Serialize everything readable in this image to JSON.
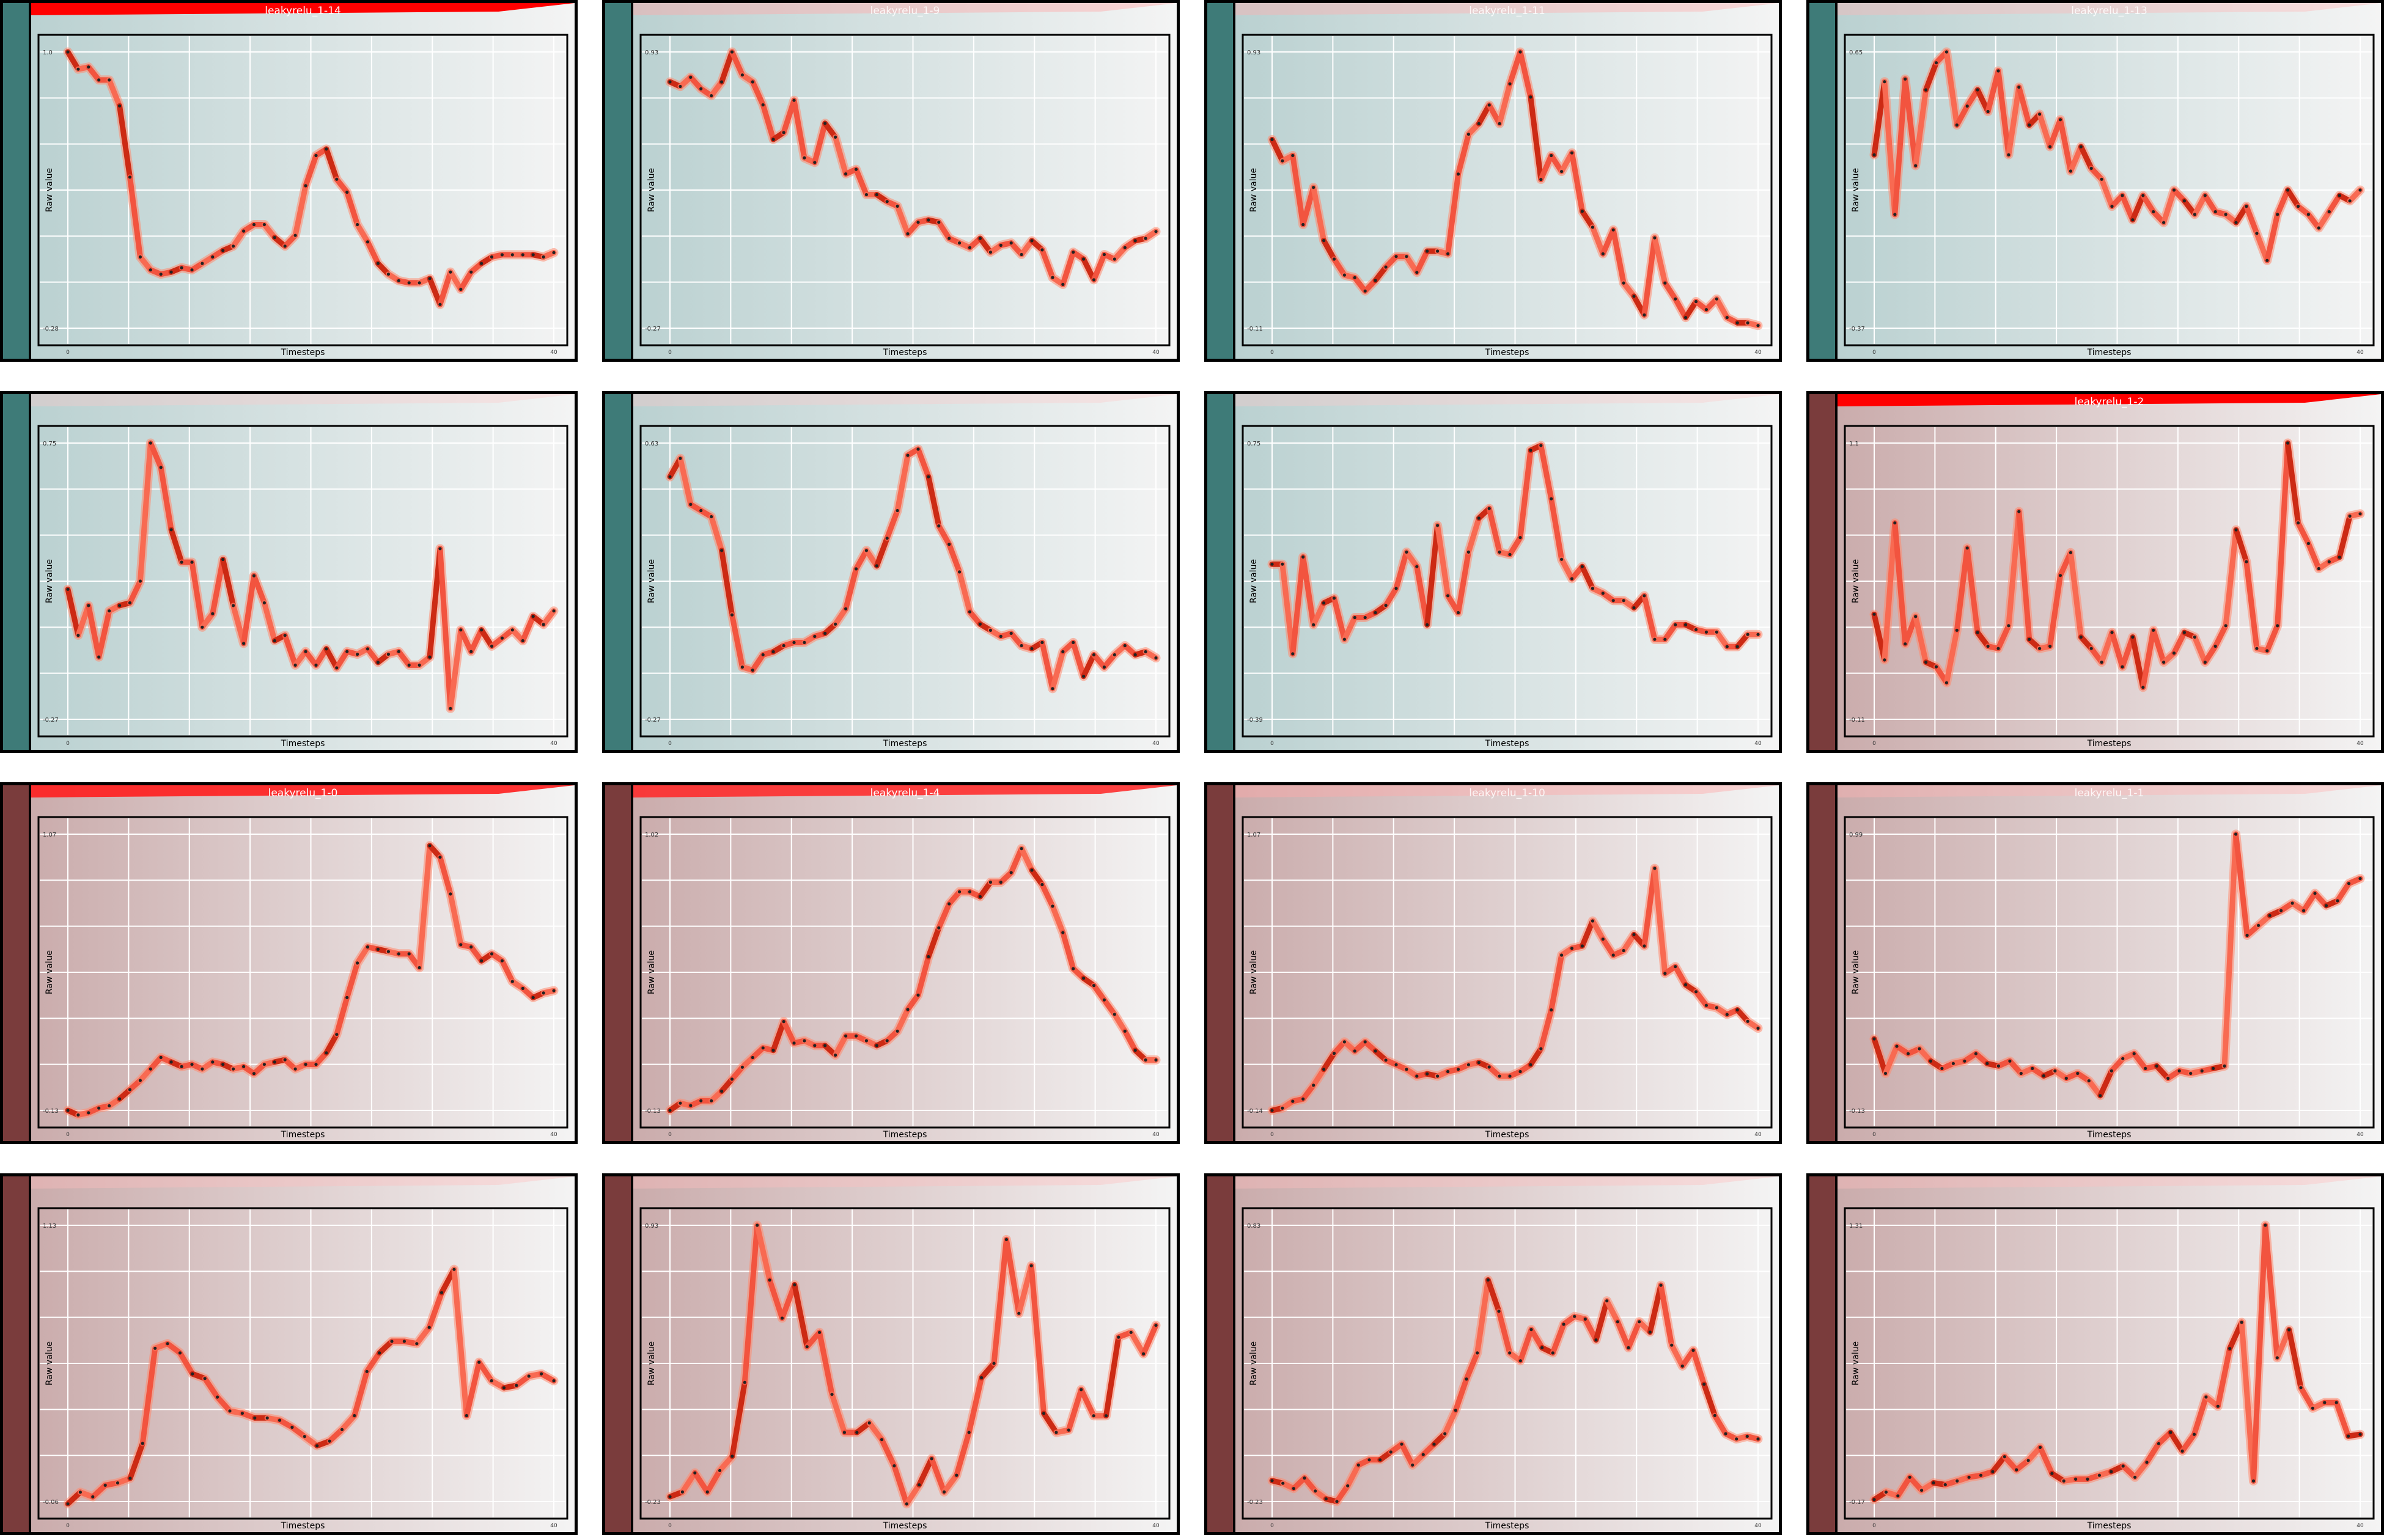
{
  "common": {
    "xlabel": "Timesteps",
    "ylabel": "Raw value",
    "x_tick_first": "0",
    "x_tick_last": "40"
  },
  "colors": {
    "teal_bg": "#3e7b78",
    "maroon_bg": "#7a3c3c",
    "line": "#f2543f",
    "line_dark": "#cc2a14",
    "title_red": "#ff0000"
  },
  "charts": [
    {
      "title": "leakyrelu_1-14",
      "title_strength": 1.0,
      "theme": "teal",
      "ylim": [
        -0.28,
        1.0
      ],
      "y_tick_top": "1.0",
      "y_tick_bottom": "-0.28",
      "values": [
        1.0,
        0.92,
        0.93,
        0.87,
        0.87,
        0.75,
        0.42,
        0.05,
        -0.01,
        -0.03,
        -0.02,
        0.0,
        -0.01,
        0.02,
        0.05,
        0.08,
        0.1,
        0.17,
        0.2,
        0.2,
        0.14,
        0.1,
        0.15,
        0.38,
        0.52,
        0.55,
        0.41,
        0.35,
        0.2,
        0.12,
        0.02,
        -0.03,
        -0.06,
        -0.07,
        -0.07,
        -0.05,
        -0.17,
        -0.02,
        -0.1,
        -0.02,
        0.02,
        0.05,
        0.06,
        0.06,
        0.06,
        0.06,
        0.05,
        0.07
      ]
    },
    {
      "title": "leakyrelu_1-9",
      "title_strength": 0.15,
      "theme": "teal",
      "ylim": [
        -0.27,
        0.93
      ],
      "y_tick_top": "0.93",
      "y_tick_bottom": "-0.27",
      "values": [
        0.8,
        0.78,
        0.82,
        0.77,
        0.74,
        0.8,
        0.93,
        0.83,
        0.8,
        0.7,
        0.55,
        0.58,
        0.72,
        0.47,
        0.45,
        0.62,
        0.56,
        0.4,
        0.42,
        0.31,
        0.31,
        0.28,
        0.26,
        0.14,
        0.19,
        0.2,
        0.19,
        0.12,
        0.1,
        0.08,
        0.12,
        0.06,
        0.09,
        0.1,
        0.05,
        0.11,
        0.07,
        -0.05,
        -0.08,
        0.06,
        0.03,
        -0.06,
        0.05,
        0.03,
        0.08,
        0.11,
        0.12,
        0.15
      ]
    },
    {
      "title": "leakyrelu_1-11",
      "title_strength": 0.12,
      "theme": "teal",
      "ylim": [
        -0.11,
        0.93
      ],
      "y_tick_top": "0.93",
      "y_tick_bottom": "-0.11",
      "values": [
        0.6,
        0.52,
        0.54,
        0.28,
        0.42,
        0.22,
        0.15,
        0.09,
        0.08,
        0.03,
        0.07,
        0.12,
        0.16,
        0.16,
        0.1,
        0.18,
        0.18,
        0.17,
        0.47,
        0.62,
        0.66,
        0.73,
        0.66,
        0.81,
        0.93,
        0.76,
        0.45,
        0.54,
        0.48,
        0.55,
        0.33,
        0.27,
        0.17,
        0.26,
        0.06,
        0.01,
        -0.06,
        0.23,
        0.06,
        0.0,
        -0.07,
        -0.01,
        -0.04,
        0.0,
        -0.07,
        -0.09,
        -0.09,
        -0.1
      ]
    },
    {
      "title": "leakyrelu_1-13",
      "title_strength": 0.08,
      "theme": "teal",
      "ylim": [
        -0.37,
        0.65
      ],
      "y_tick_top": "0.65",
      "y_tick_bottom": "-0.37",
      "values": [
        0.27,
        0.54,
        0.05,
        0.55,
        0.23,
        0.51,
        0.61,
        0.65,
        0.38,
        0.45,
        0.51,
        0.43,
        0.58,
        0.27,
        0.52,
        0.38,
        0.42,
        0.3,
        0.4,
        0.21,
        0.3,
        0.22,
        0.18,
        0.08,
        0.12,
        0.03,
        0.12,
        0.06,
        0.02,
        0.14,
        0.1,
        0.05,
        0.12,
        0.06,
        0.05,
        0.02,
        0.08,
        -0.02,
        -0.12,
        0.05,
        0.14,
        0.08,
        0.05,
        0.0,
        0.06,
        0.12,
        0.1,
        0.14
      ]
    },
    {
      "title": "",
      "title_strength": 0.0,
      "theme": "teal",
      "ylim": [
        -0.27,
        0.75
      ],
      "y_tick_top": "0.75",
      "y_tick_bottom": "-0.27",
      "values": [
        0.21,
        0.04,
        0.15,
        -0.04,
        0.13,
        0.15,
        0.16,
        0.24,
        0.75,
        0.66,
        0.43,
        0.31,
        0.31,
        0.07,
        0.12,
        0.32,
        0.15,
        0.01,
        0.26,
        0.16,
        0.02,
        0.04,
        -0.07,
        -0.02,
        -0.07,
        -0.01,
        -0.08,
        -0.02,
        -0.03,
        -0.01,
        -0.06,
        -0.03,
        -0.02,
        -0.07,
        -0.07,
        -0.04,
        0.36,
        -0.23,
        0.06,
        -0.02,
        0.06,
        0.0,
        0.03,
        0.06,
        0.02,
        0.11,
        0.08,
        0.13
      ]
    },
    {
      "title": "",
      "title_strength": 0.0,
      "theme": "teal",
      "ylim": [
        -0.27,
        0.63
      ],
      "y_tick_top": "0.63",
      "y_tick_bottom": "-0.27",
      "values": [
        0.52,
        0.58,
        0.43,
        0.41,
        0.39,
        0.28,
        0.07,
        -0.1,
        -0.11,
        -0.06,
        -0.05,
        -0.03,
        -0.02,
        -0.02,
        0.0,
        0.01,
        0.04,
        0.09,
        0.22,
        0.28,
        0.23,
        0.32,
        0.41,
        0.59,
        0.61,
        0.52,
        0.36,
        0.3,
        0.21,
        0.08,
        0.04,
        0.02,
        0.0,
        0.01,
        -0.03,
        -0.04,
        -0.02,
        -0.17,
        -0.05,
        -0.02,
        -0.13,
        -0.06,
        -0.1,
        -0.06,
        -0.03,
        -0.06,
        -0.05,
        -0.07
      ]
    },
    {
      "title": "",
      "title_strength": 0.0,
      "theme": "teal",
      "ylim": [
        -0.39,
        0.75
      ],
      "y_tick_top": "0.75",
      "y_tick_bottom": "-0.39",
      "values": [
        0.25,
        0.25,
        -0.12,
        0.28,
        0.0,
        0.09,
        0.11,
        -0.06,
        0.03,
        0.03,
        0.05,
        0.08,
        0.15,
        0.3,
        0.24,
        0.0,
        0.41,
        0.12,
        0.05,
        0.3,
        0.44,
        0.48,
        0.3,
        0.29,
        0.36,
        0.72,
        0.74,
        0.52,
        0.27,
        0.19,
        0.24,
        0.15,
        0.13,
        0.1,
        0.1,
        0.07,
        0.12,
        -0.06,
        -0.06,
        0.0,
        0.0,
        -0.02,
        -0.03,
        -0.03,
        -0.09,
        -0.09,
        -0.04,
        -0.04
      ]
    },
    {
      "title": "leakyrelu_1-2",
      "title_strength": 1.0,
      "theme": "maroon",
      "ylim": [
        -0.11,
        1.1
      ],
      "y_tick_top": "1.1",
      "y_tick_bottom": "-0.11",
      "values": [
        0.35,
        0.15,
        0.75,
        0.22,
        0.34,
        0.14,
        0.12,
        0.05,
        0.28,
        0.64,
        0.27,
        0.21,
        0.2,
        0.3,
        0.8,
        0.24,
        0.2,
        0.21,
        0.52,
        0.62,
        0.25,
        0.2,
        0.14,
        0.27,
        0.12,
        0.25,
        0.03,
        0.28,
        0.14,
        0.18,
        0.27,
        0.25,
        0.14,
        0.21,
        0.3,
        0.72,
        0.58,
        0.2,
        0.19,
        0.3,
        1.1,
        0.75,
        0.66,
        0.55,
        0.58,
        0.6,
        0.78,
        0.79
      ]
    },
    {
      "title": "leakyrelu_1-0",
      "title_strength": 0.85,
      "theme": "maroon",
      "ylim": [
        -0.13,
        1.07
      ],
      "y_tick_top": "1.07",
      "y_tick_bottom": "-0.13",
      "values": [
        -0.13,
        -0.15,
        -0.14,
        -0.12,
        -0.11,
        -0.08,
        -0.04,
        0.0,
        0.05,
        0.1,
        0.08,
        0.06,
        0.07,
        0.05,
        0.08,
        0.07,
        0.05,
        0.06,
        0.03,
        0.07,
        0.08,
        0.09,
        0.05,
        0.07,
        0.07,
        0.12,
        0.2,
        0.36,
        0.51,
        0.58,
        0.57,
        0.56,
        0.55,
        0.55,
        0.49,
        1.02,
        0.97,
        0.81,
        0.59,
        0.58,
        0.52,
        0.55,
        0.52,
        0.43,
        0.4,
        0.36,
        0.38,
        0.39
      ]
    },
    {
      "title": "leakyrelu_1-4",
      "title_strength": 0.8,
      "theme": "maroon",
      "ylim": [
        -0.13,
        1.02
      ],
      "y_tick_top": "1.02",
      "y_tick_bottom": "-0.13",
      "values": [
        -0.13,
        -0.1,
        -0.11,
        -0.09,
        -0.09,
        -0.05,
        0.0,
        0.05,
        0.09,
        0.13,
        0.12,
        0.24,
        0.15,
        0.16,
        0.14,
        0.14,
        0.1,
        0.18,
        0.18,
        0.16,
        0.14,
        0.16,
        0.2,
        0.29,
        0.35,
        0.51,
        0.63,
        0.73,
        0.78,
        0.78,
        0.76,
        0.82,
        0.82,
        0.86,
        0.96,
        0.87,
        0.81,
        0.72,
        0.61,
        0.46,
        0.42,
        0.39,
        0.33,
        0.27,
        0.2,
        0.12,
        0.08,
        0.08
      ]
    },
    {
      "title": "leakyrelu_1-10",
      "title_strength": 0.15,
      "theme": "maroon",
      "ylim": [
        -0.14,
        1.07
      ],
      "y_tick_top": "1.07",
      "y_tick_bottom": "-0.14",
      "values": [
        -0.14,
        -0.13,
        -0.1,
        -0.09,
        -0.03,
        0.04,
        0.11,
        0.16,
        0.12,
        0.16,
        0.12,
        0.08,
        0.06,
        0.04,
        0.01,
        0.02,
        0.01,
        0.03,
        0.04,
        0.06,
        0.07,
        0.05,
        0.01,
        0.01,
        0.03,
        0.06,
        0.13,
        0.3,
        0.54,
        0.57,
        0.58,
        0.69,
        0.61,
        0.54,
        0.56,
        0.63,
        0.58,
        0.92,
        0.46,
        0.49,
        0.41,
        0.38,
        0.32,
        0.31,
        0.28,
        0.3,
        0.25,
        0.22
      ]
    },
    {
      "title": "leakyrelu_1-1",
      "title_strength": 0.1,
      "theme": "maroon",
      "ylim": [
        -0.13,
        0.99
      ],
      "y_tick_top": "0.99",
      "y_tick_bottom": "-0.13",
      "values": [
        0.16,
        0.02,
        0.13,
        0.1,
        0.12,
        0.07,
        0.04,
        0.06,
        0.07,
        0.1,
        0.06,
        0.05,
        0.07,
        0.02,
        0.04,
        0.01,
        0.03,
        0.0,
        0.02,
        -0.01,
        -0.07,
        0.03,
        0.08,
        0.1,
        0.04,
        0.05,
        0.0,
        0.03,
        0.02,
        0.03,
        0.04,
        0.05,
        0.99,
        0.58,
        0.62,
        0.66,
        0.68,
        0.71,
        0.68,
        0.75,
        0.7,
        0.72,
        0.79,
        0.81
      ]
    },
    {
      "title": "",
      "title_strength": 0.05,
      "theme": "maroon",
      "ylim": [
        -0.06,
        1.13
      ],
      "y_tick_top": "1.13",
      "y_tick_bottom": "-0.06",
      "values": [
        -0.07,
        -0.02,
        -0.04,
        0.01,
        0.02,
        0.04,
        0.19,
        0.6,
        0.62,
        0.58,
        0.49,
        0.47,
        0.39,
        0.33,
        0.32,
        0.3,
        0.3,
        0.29,
        0.26,
        0.22,
        0.18,
        0.2,
        0.25,
        0.31,
        0.5,
        0.58,
        0.63,
        0.63,
        0.62,
        0.69,
        0.84,
        0.94,
        0.31,
        0.54,
        0.46,
        0.43,
        0.44,
        0.48,
        0.49,
        0.46
      ]
    },
    {
      "title": "",
      "title_strength": 0.05,
      "theme": "maroon",
      "ylim": [
        -0.23,
        0.93
      ],
      "y_tick_top": "0.93",
      "y_tick_bottom": "-0.23",
      "values": [
        -0.21,
        -0.19,
        -0.11,
        -0.19,
        -0.1,
        -0.04,
        0.27,
        0.93,
        0.7,
        0.54,
        0.68,
        0.42,
        0.48,
        0.22,
        0.06,
        0.06,
        0.1,
        0.03,
        -0.08,
        -0.24,
        -0.16,
        -0.05,
        -0.19,
        -0.12,
        0.06,
        0.29,
        0.35,
        0.87,
        0.56,
        0.76,
        0.14,
        0.06,
        0.07,
        0.24,
        0.13,
        0.13,
        0.46,
        0.48,
        0.39,
        0.51
      ]
    },
    {
      "title": "",
      "title_strength": 0.05,
      "theme": "maroon",
      "ylim": [
        -0.23,
        0.83
      ],
      "y_tick_top": "0.83",
      "y_tick_bottom": "-0.23",
      "values": [
        -0.15,
        -0.16,
        -0.18,
        -0.14,
        -0.19,
        -0.22,
        -0.23,
        -0.17,
        -0.09,
        -0.07,
        -0.07,
        -0.04,
        -0.01,
        -0.09,
        -0.05,
        -0.01,
        0.03,
        0.12,
        0.24,
        0.34,
        0.62,
        0.5,
        0.34,
        0.31,
        0.43,
        0.36,
        0.34,
        0.45,
        0.48,
        0.47,
        0.39,
        0.54,
        0.46,
        0.36,
        0.46,
        0.42,
        0.6,
        0.37,
        0.29,
        0.35,
        0.22,
        0.1,
        0.03,
        0.01,
        0.02,
        0.01
      ]
    },
    {
      "title": "",
      "title_strength": 0.05,
      "theme": "maroon",
      "ylim": [
        -0.17,
        1.31
      ],
      "y_tick_top": "1.31",
      "y_tick_bottom": "-0.17",
      "values": [
        -0.16,
        -0.12,
        -0.14,
        -0.04,
        -0.11,
        -0.07,
        -0.08,
        -0.06,
        -0.04,
        -0.03,
        -0.01,
        0.07,
        0.0,
        0.05,
        0.12,
        -0.02,
        -0.06,
        -0.05,
        -0.05,
        -0.03,
        -0.01,
        0.02,
        -0.04,
        0.04,
        0.14,
        0.2,
        0.1,
        0.19,
        0.39,
        0.34,
        0.65,
        0.79,
        -0.06,
        1.31,
        0.6,
        0.75,
        0.44,
        0.33,
        0.36,
        0.36,
        0.18,
        0.19
      ]
    }
  ]
}
